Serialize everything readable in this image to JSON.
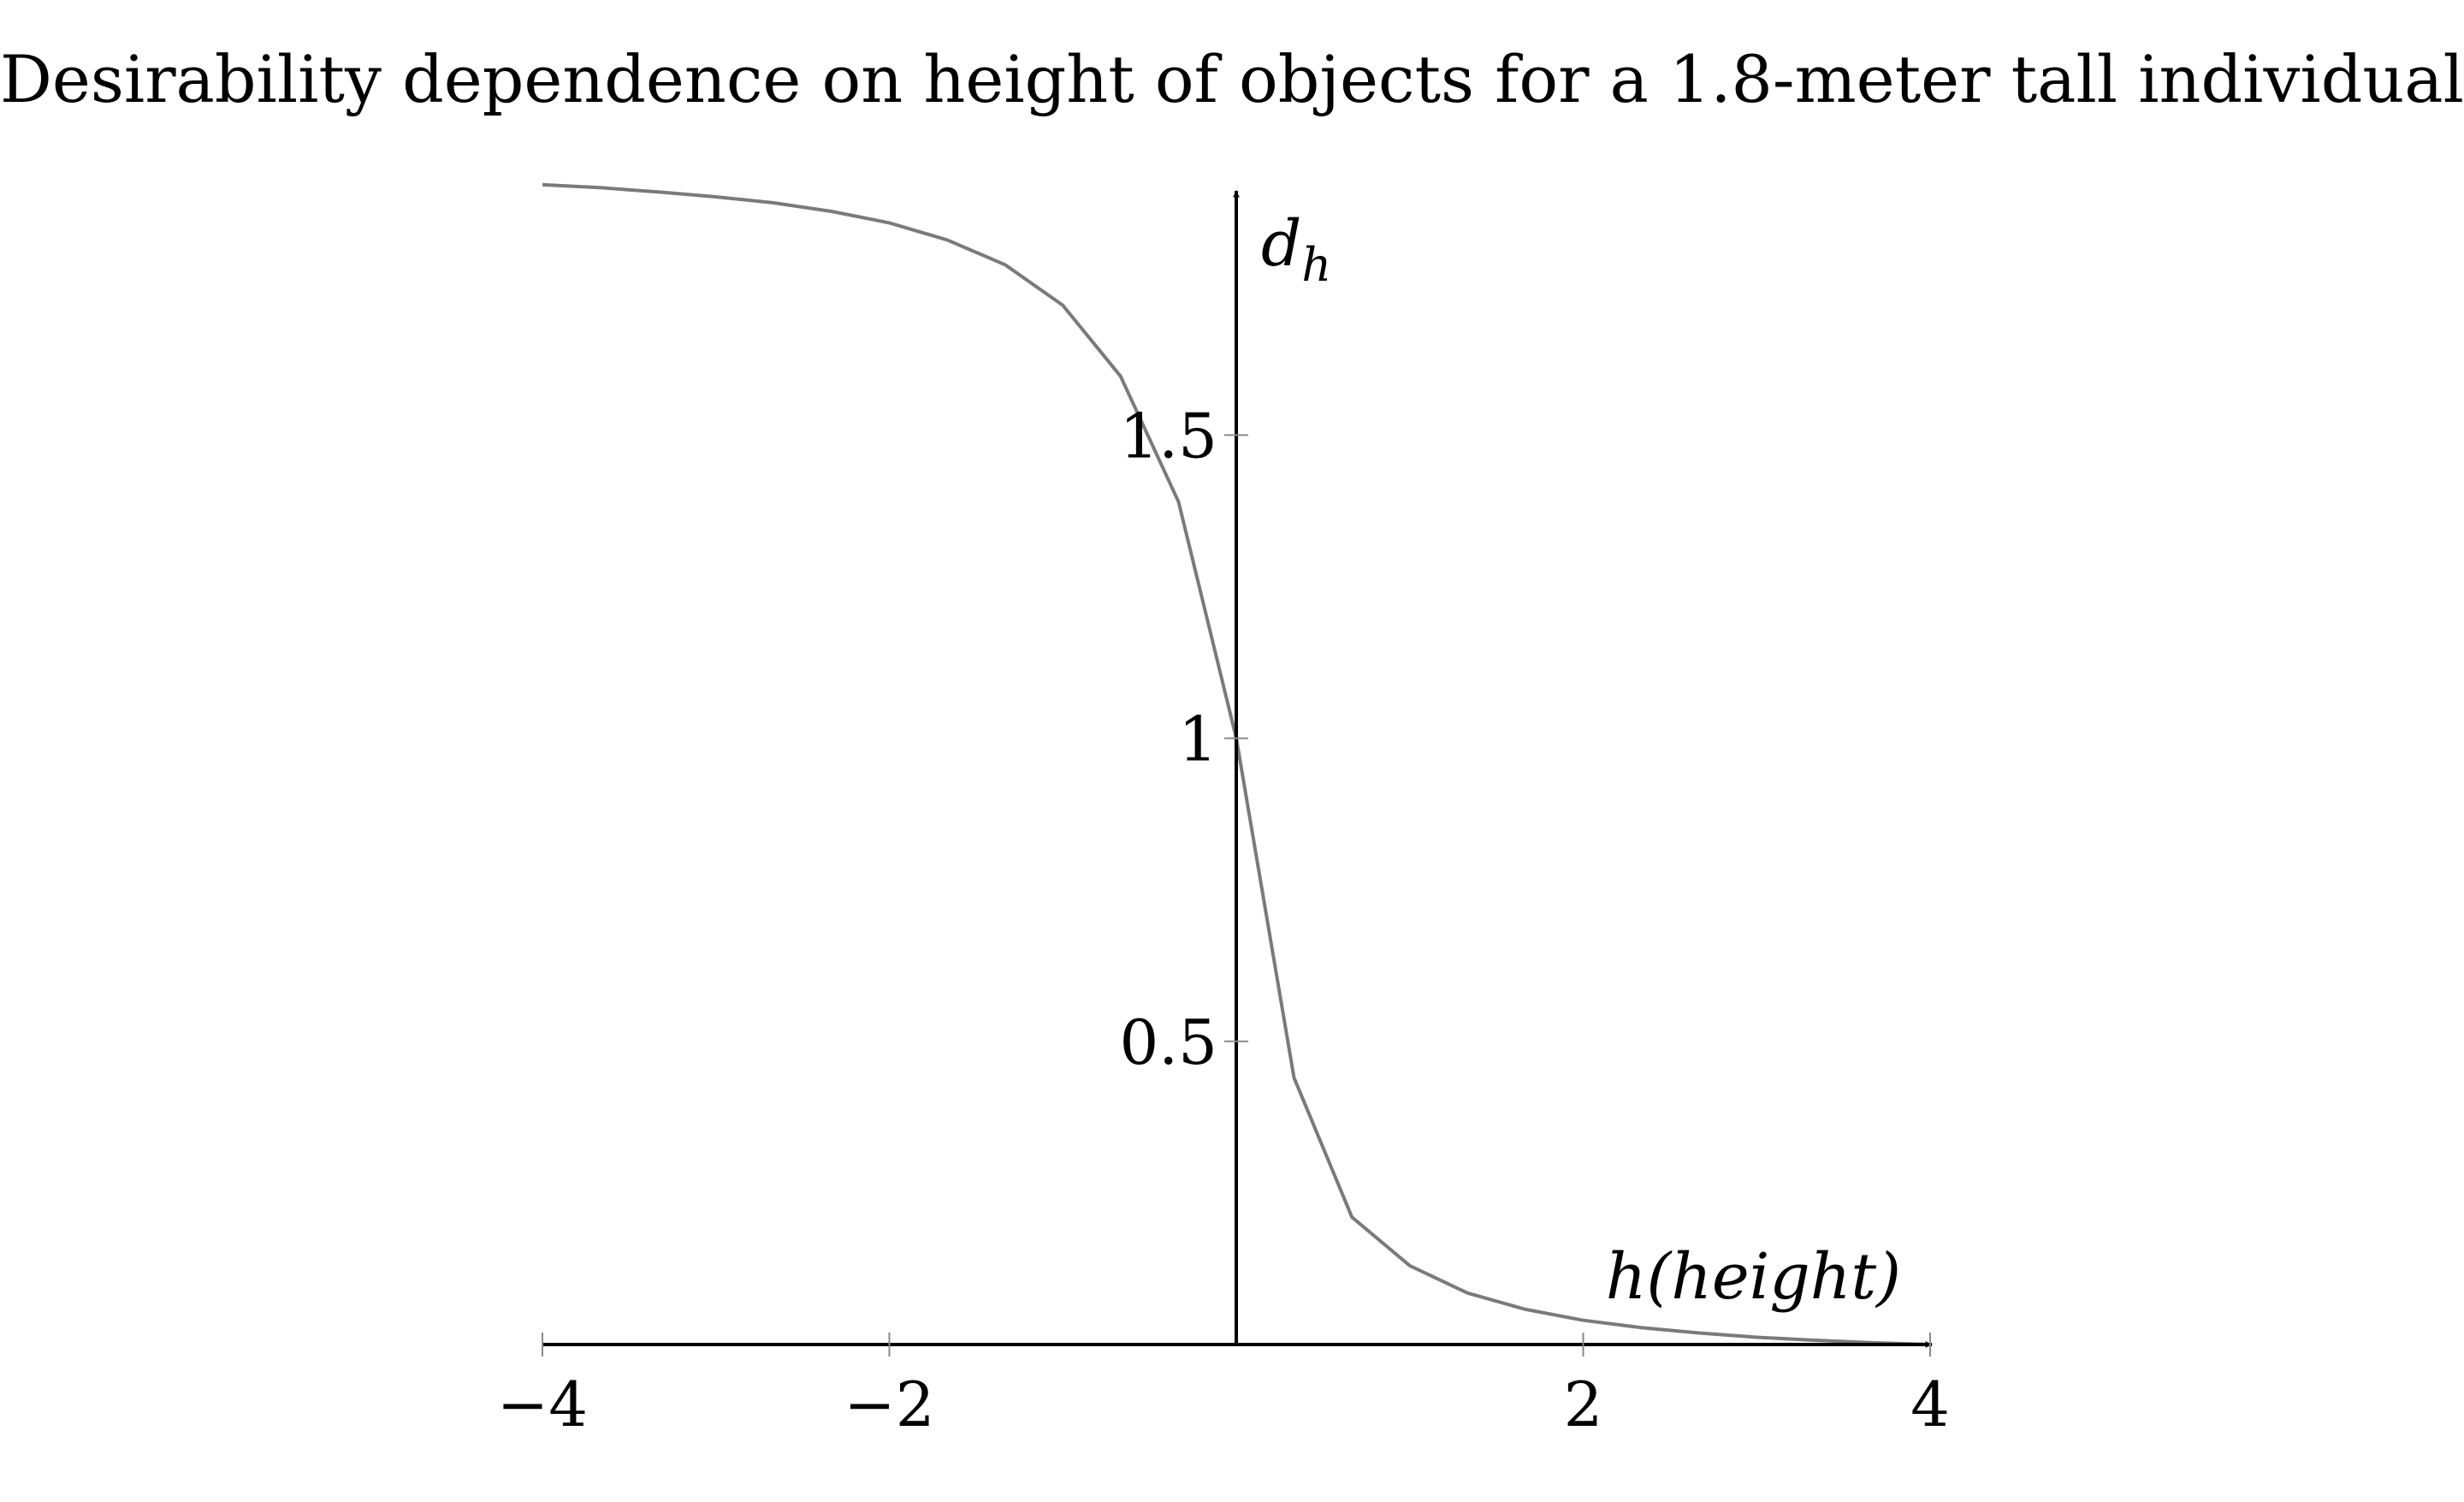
{
  "chart_data": {
    "type": "line",
    "title": "Desirability dependence on height of objects for a 1.8-meter tall individual",
    "xlabel": "h(height)",
    "ylabel": "dh",
    "xlim": [
      -4,
      4
    ],
    "ylim": [
      0,
      1.9
    ],
    "x_ticks": [
      {
        "value": -4,
        "label": "−4"
      },
      {
        "value": -2,
        "label": "−2"
      },
      {
        "value": 2,
        "label": "2"
      },
      {
        "value": 4,
        "label": "4"
      }
    ],
    "y_ticks": [
      {
        "value": 0.5,
        "label": "0.5"
      },
      {
        "value": 1,
        "label": "1"
      },
      {
        "value": 1.5,
        "label": "1.5"
      }
    ],
    "grid": false,
    "series": [
      {
        "color": "#7a7a7a",
        "x": [
          -4,
          -3.667,
          -3.333,
          -3,
          -2.667,
          -2.333,
          -2,
          -1.667,
          -1.333,
          -1,
          -0.667,
          -0.333,
          0,
          0.333,
          0.667,
          1,
          1.333,
          1.667,
          2,
          2.333,
          2.667,
          3,
          3.333,
          3.667,
          4
        ],
        "y": [
          1.913,
          1.908,
          1.901,
          1.893,
          1.883,
          1.869,
          1.85,
          1.822,
          1.781,
          1.714,
          1.597,
          1.39,
          1.0,
          0.44,
          0.21,
          0.13,
          0.085,
          0.058,
          0.04,
          0.028,
          0.019,
          0.012,
          0.007,
          0.003,
          0.0
        ]
      }
    ]
  }
}
